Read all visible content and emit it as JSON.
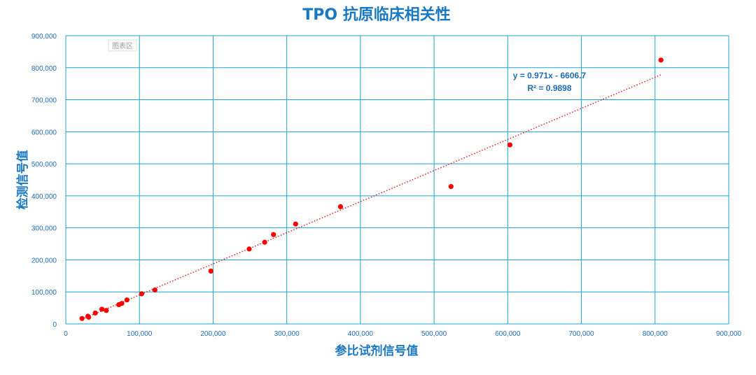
{
  "chart_data": {
    "type": "scatter",
    "title": "TPO 抗原临床相关性",
    "xlabel": "参比试剂信号值",
    "ylabel": "检测信号值",
    "xlim": [
      0,
      900000
    ],
    "ylim": [
      0,
      900000
    ],
    "x_ticks": [
      "0",
      "100,000",
      "200,000",
      "300,000",
      "400,000",
      "500,000",
      "600,000",
      "700,000",
      "800,000",
      "900,000"
    ],
    "y_ticks": [
      "0",
      "100,000",
      "200,000",
      "300,000",
      "400,000",
      "500,000",
      "600,000",
      "700,000",
      "800,000",
      "900,000"
    ],
    "grid": true,
    "chart_area_tag": "图表区",
    "trendline": {
      "type": "linear",
      "slope": 0.971,
      "intercept": -6606.7,
      "equation": "y = 0.971x - 6606.7",
      "r_squared": "R² = 0.9898",
      "x_range": [
        22000,
        808000
      ]
    },
    "series": [
      {
        "points": [
          [
            22000,
            17000
          ],
          [
            30000,
            24000
          ],
          [
            31000,
            21000
          ],
          [
            40000,
            34000
          ],
          [
            49000,
            46000
          ],
          [
            55000,
            42000
          ],
          [
            72000,
            60000
          ],
          [
            76000,
            64000
          ],
          [
            83000,
            75000
          ],
          [
            103000,
            94000
          ],
          [
            121000,
            106000
          ],
          [
            197000,
            165000
          ],
          [
            249000,
            234000
          ],
          [
            270000,
            255000
          ],
          [
            282000,
            279000
          ],
          [
            312000,
            312000
          ],
          [
            373000,
            366000
          ],
          [
            523000,
            429000
          ],
          [
            603000,
            559000
          ],
          [
            808000,
            824000
          ]
        ]
      }
    ],
    "colors": {
      "points": "#ff0000",
      "trendline": "#e0201c",
      "grid": "#1ba3d6",
      "text": "#1a78c2"
    }
  }
}
